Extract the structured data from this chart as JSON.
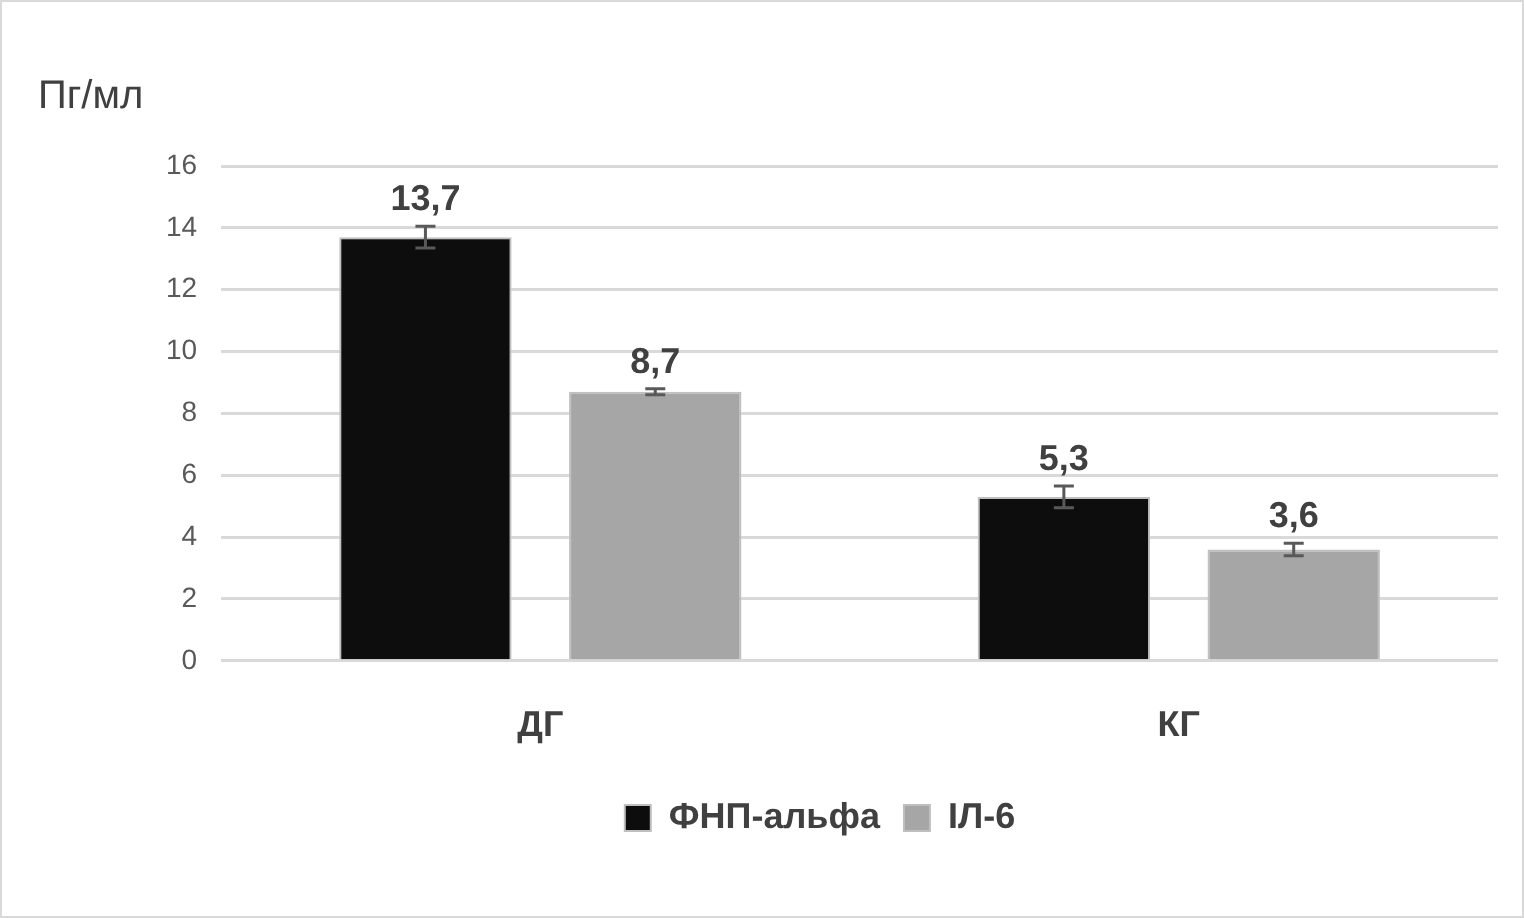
{
  "chart_data": {
    "type": "bar",
    "ylabel": "Пг/мл",
    "categories": [
      "ДГ",
      "КГ"
    ],
    "series": [
      {
        "name": "ФНП-альфа",
        "color": "#0d0d0d",
        "values": [
          13.7,
          5.3
        ],
        "errors": [
          0.35,
          0.35
        ],
        "value_labels": [
          "13,7",
          "5,3"
        ]
      },
      {
        "name": "IЛ-6",
        "color": "#a6a6a6",
        "values": [
          8.7,
          3.6
        ],
        "errors": [
          0.1,
          0.2
        ],
        "value_labels": [
          "8,7",
          "3,6"
        ]
      }
    ],
    "ylim": [
      0,
      16
    ],
    "yticks": [
      0,
      2,
      4,
      6,
      8,
      10,
      12,
      14,
      16
    ],
    "grid": "y",
    "legend": "bottom"
  }
}
